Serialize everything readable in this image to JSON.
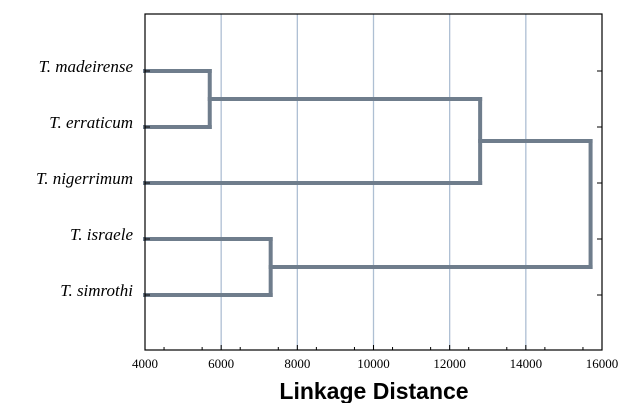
{
  "chart_data": {
    "type": "dendrogram",
    "xlabel": "Linkage Distance",
    "xlim": [
      4000,
      16000
    ],
    "xticks": [
      4000,
      6000,
      8000,
      10000,
      12000,
      14000,
      16000
    ],
    "xtick_labels": [
      "4000",
      "6000",
      "8000",
      "10000",
      "12000",
      "14000",
      "16000"
    ],
    "grid": "vertical",
    "leaves": [
      "T. madeirense",
      "T. erraticum",
      "T. nigerrimum",
      "T. israele",
      "T. simrothi"
    ],
    "merges": [
      {
        "members": [
          "T. madeirense",
          "T. erraticum"
        ],
        "distance": 5700
      },
      {
        "members": [
          "T. israele",
          "T. simrothi"
        ],
        "distance": 7300
      },
      {
        "members": [
          "T. madeirense",
          "T. erraticum",
          "T. nigerrimum"
        ],
        "distance": 12800
      },
      {
        "members": [
          "T. madeirense",
          "T. erraticum",
          "T. nigerrimum",
          "T. israele",
          "T. simrothi"
        ],
        "distance": 15700
      }
    ],
    "colors": {
      "link": "#6f7d8c",
      "grid": "#aebfd3",
      "frame": "#000000"
    }
  }
}
